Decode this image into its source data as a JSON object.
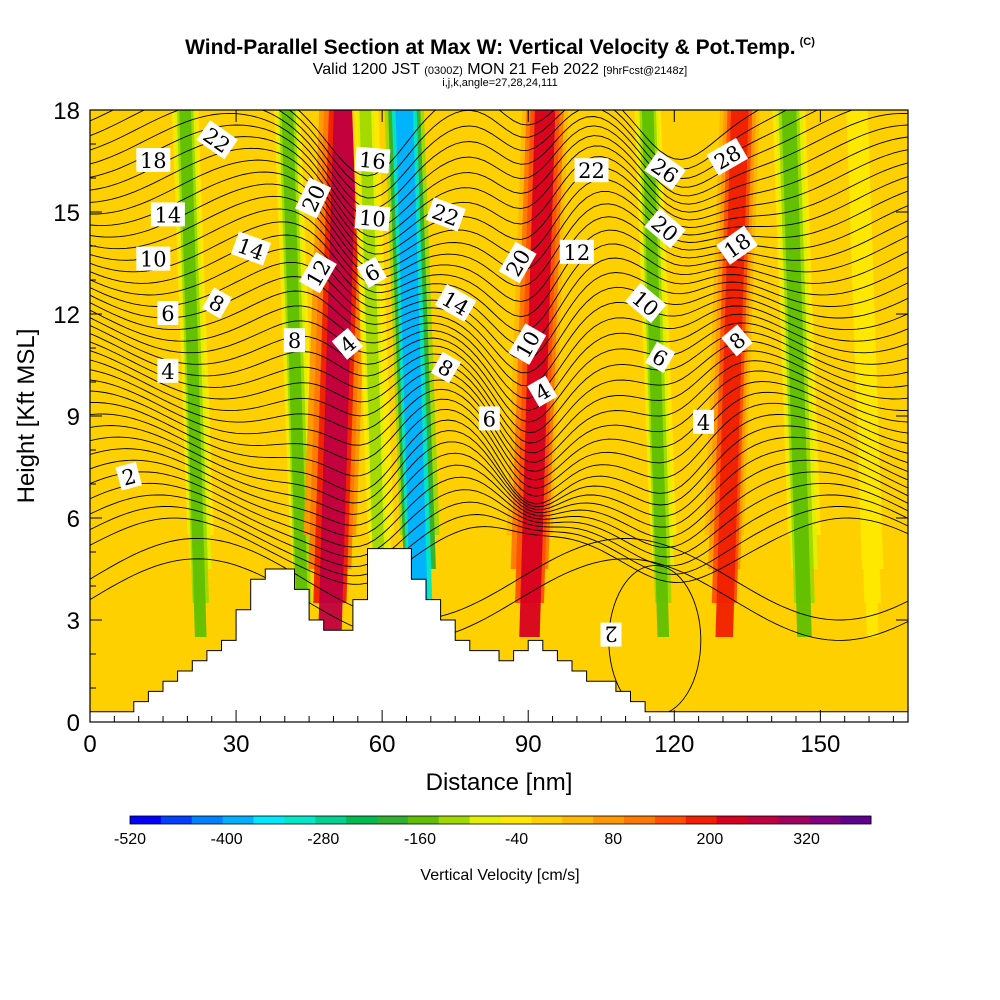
{
  "header": {
    "title": "Wind-Parallel Section at Max W: Vertical Velocity & Pot.Temp.",
    "copyright": "(C)",
    "valid_prefix": "Valid 1200 JST",
    "valid_utc": "(0300Z)",
    "valid_date": "MON 21 Feb 2022",
    "forecast": "[9hrFcst@2148z]",
    "indices": "i,j,k,angle=27,28,24,111"
  },
  "colorbar": {
    "title": "Vertical Velocity [cm/s]",
    "tick_labels": [
      "-520",
      "-400",
      "-280",
      "-160",
      "-40",
      "80",
      "200",
      "320"
    ],
    "tick_values": [
      -520,
      -400,
      -280,
      -160,
      -40,
      80,
      200,
      320
    ],
    "colors": [
      "#0000ff",
      "#0040ff",
      "#0080ff",
      "#00b0ff",
      "#00e8ff",
      "#00e8c8",
      "#00d090",
      "#00bc50",
      "#30b030",
      "#60c000",
      "#a0d800",
      "#e0f000",
      "#ffe800",
      "#ffd000",
      "#ffb800",
      "#ff9800",
      "#ff7800",
      "#ff5000",
      "#f02000",
      "#d80020",
      "#c00040",
      "#a00060",
      "#800080",
      "#600090"
    ]
  },
  "chart_data": {
    "type": "heatmap",
    "title": "Wind-Parallel Section at Max W: Vertical Velocity & Pot.Temp.",
    "xlabel": "Distance [nm]",
    "ylabel": "Height [Kft MSL]",
    "xlim": [
      0,
      168
    ],
    "ylim": [
      0,
      18
    ],
    "x_ticks": [
      0,
      30,
      60,
      90,
      120,
      150
    ],
    "y_ticks": [
      0,
      3,
      6,
      9,
      12,
      15,
      18
    ],
    "background_value_cm_s": 0,
    "velocity_bands": [
      {
        "x": 22,
        "width": 4,
        "value": -150
      },
      {
        "x": 43,
        "width": 4,
        "value": -150
      },
      {
        "x": 50,
        "width": 8,
        "value": 260
      },
      {
        "x": 59,
        "width": 4,
        "value": -120
      },
      {
        "x": 67,
        "width": 6,
        "value": -400
      },
      {
        "x": 91,
        "width": 7,
        "value": 220
      },
      {
        "x": 117,
        "width": 4,
        "value": -150
      },
      {
        "x": 131,
        "width": 6,
        "value": 180
      },
      {
        "x": 146,
        "width": 5,
        "value": -170
      },
      {
        "x": 160,
        "width": 4,
        "value": -60
      }
    ],
    "terrain": [
      [
        0,
        0.3
      ],
      [
        9,
        0.3
      ],
      [
        9,
        0.6
      ],
      [
        12,
        0.6
      ],
      [
        12,
        0.9
      ],
      [
        15,
        0.9
      ],
      [
        15,
        1.2
      ],
      [
        18,
        1.2
      ],
      [
        18,
        1.5
      ],
      [
        21,
        1.5
      ],
      [
        21,
        1.8
      ],
      [
        24,
        1.8
      ],
      [
        24,
        2.1
      ],
      [
        27,
        2.1
      ],
      [
        27,
        2.4
      ],
      [
        30,
        2.4
      ],
      [
        30,
        3.3
      ],
      [
        33,
        3.3
      ],
      [
        33,
        4.2
      ],
      [
        36,
        4.2
      ],
      [
        36,
        4.5
      ],
      [
        42,
        4.5
      ],
      [
        42,
        3.9
      ],
      [
        45,
        3.9
      ],
      [
        45,
        3.0
      ],
      [
        48,
        3.0
      ],
      [
        48,
        2.7
      ],
      [
        54,
        2.7
      ],
      [
        54,
        3.6
      ],
      [
        57,
        3.6
      ],
      [
        57,
        5.1
      ],
      [
        66,
        5.1
      ],
      [
        66,
        4.2
      ],
      [
        69,
        4.2
      ],
      [
        69,
        3.6
      ],
      [
        72,
        3.6
      ],
      [
        72,
        3.0
      ],
      [
        75,
        3.0
      ],
      [
        75,
        2.4
      ],
      [
        78,
        2.4
      ],
      [
        78,
        2.1
      ],
      [
        84,
        2.1
      ],
      [
        84,
        1.8
      ],
      [
        87,
        1.8
      ],
      [
        87,
        2.1
      ],
      [
        90,
        2.1
      ],
      [
        90,
        2.4
      ],
      [
        93,
        2.4
      ],
      [
        93,
        2.1
      ],
      [
        96,
        2.1
      ],
      [
        96,
        1.8
      ],
      [
        99,
        1.8
      ],
      [
        99,
        1.5
      ],
      [
        102,
        1.5
      ],
      [
        102,
        1.2
      ],
      [
        108,
        1.2
      ],
      [
        108,
        0.9
      ],
      [
        111,
        0.9
      ],
      [
        111,
        0.6
      ],
      [
        114,
        0.6
      ],
      [
        114,
        0.3
      ],
      [
        168,
        0.3
      ]
    ],
    "theta_contour_labels": [
      {
        "x": 8,
        "y": 7.2,
        "text": "2",
        "angle": -15
      },
      {
        "x": 16,
        "y": 10.3,
        "text": "4",
        "angle": 0
      },
      {
        "x": 16,
        "y": 12.0,
        "text": "6",
        "angle": 0
      },
      {
        "x": 13,
        "y": 13.6,
        "text": "10",
        "angle": 0
      },
      {
        "x": 16,
        "y": 14.9,
        "text": "14",
        "angle": 0
      },
      {
        "x": 13,
        "y": 16.5,
        "text": "18",
        "angle": 0
      },
      {
        "x": 26,
        "y": 12.3,
        "text": "8",
        "angle": 30
      },
      {
        "x": 33,
        "y": 13.9,
        "text": "14",
        "angle": 20
      },
      {
        "x": 26,
        "y": 17.1,
        "text": "22",
        "angle": 35
      },
      {
        "x": 42,
        "y": 11.2,
        "text": "8",
        "angle": 0
      },
      {
        "x": 53,
        "y": 11.1,
        "text": "4",
        "angle": -40
      },
      {
        "x": 47,
        "y": 13.2,
        "text": "12",
        "angle": -60
      },
      {
        "x": 46,
        "y": 15.4,
        "text": "20",
        "angle": -65
      },
      {
        "x": 58,
        "y": 13.2,
        "text": "6",
        "angle": -30
      },
      {
        "x": 58,
        "y": 14.8,
        "text": "10",
        "angle": 5
      },
      {
        "x": 58,
        "y": 16.5,
        "text": "16",
        "angle": 5
      },
      {
        "x": 73,
        "y": 14.9,
        "text": "22",
        "angle": 20
      },
      {
        "x": 75,
        "y": 12.3,
        "text": "14",
        "angle": 30
      },
      {
        "x": 73,
        "y": 10.4,
        "text": "8",
        "angle": 30
      },
      {
        "x": 82,
        "y": 8.9,
        "text": "6",
        "angle": 0
      },
      {
        "x": 90,
        "y": 11.1,
        "text": "10",
        "angle": -60
      },
      {
        "x": 88,
        "y": 13.5,
        "text": "20",
        "angle": -60
      },
      {
        "x": 93,
        "y": 9.7,
        "text": "4",
        "angle": -30
      },
      {
        "x": 100,
        "y": 13.8,
        "text": "12",
        "angle": 0
      },
      {
        "x": 103,
        "y": 16.2,
        "text": "22",
        "angle": 0
      },
      {
        "x": 118,
        "y": 16.2,
        "text": "26",
        "angle": 35
      },
      {
        "x": 131,
        "y": 16.6,
        "text": "28",
        "angle": -30
      },
      {
        "x": 118,
        "y": 14.5,
        "text": "20",
        "angle": 40
      },
      {
        "x": 133,
        "y": 14.0,
        "text": "18",
        "angle": -35
      },
      {
        "x": 114,
        "y": 12.3,
        "text": "10",
        "angle": 40
      },
      {
        "x": 117,
        "y": 10.7,
        "text": "6",
        "angle": 30
      },
      {
        "x": 133,
        "y": 11.2,
        "text": "8",
        "angle": -40
      },
      {
        "x": 126,
        "y": 8.8,
        "text": "4",
        "angle": 0
      },
      {
        "x": 107,
        "y": 2.6,
        "text": "2",
        "angle": 180
      }
    ]
  }
}
